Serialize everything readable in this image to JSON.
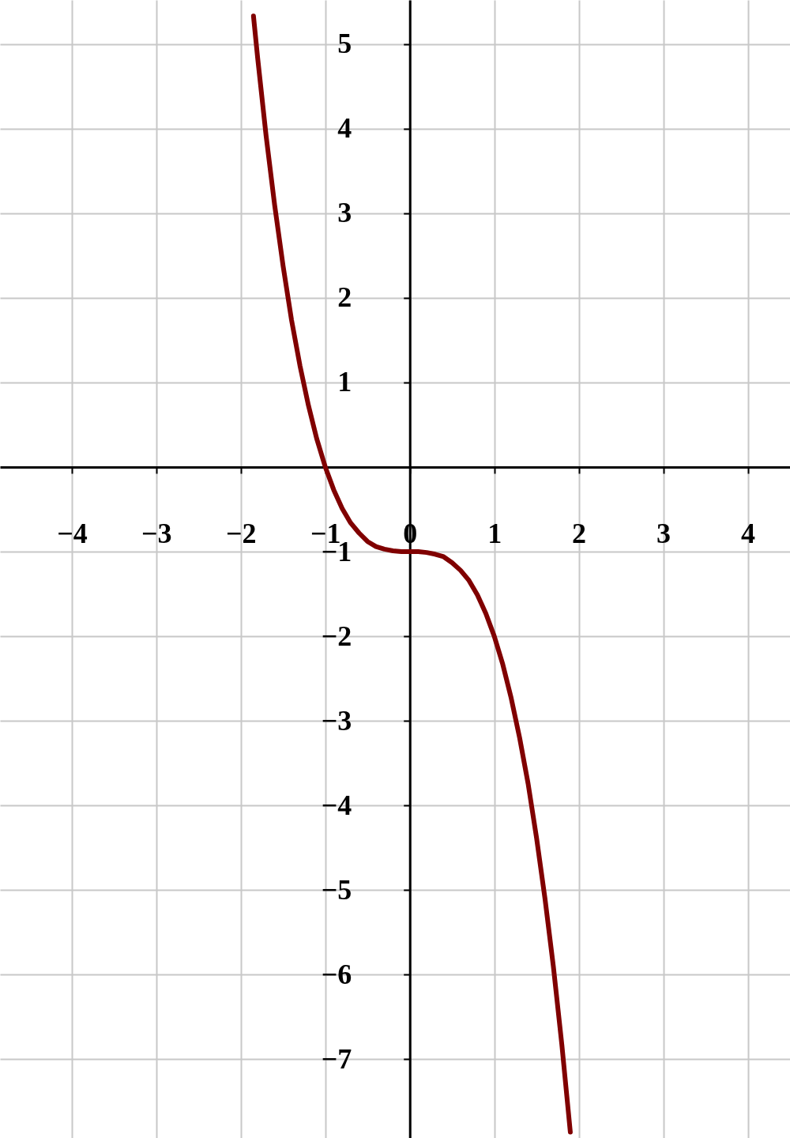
{
  "chart_data": {
    "type": "line",
    "x": [
      -1.85,
      -1.8,
      -1.7,
      -1.6,
      -1.5,
      -1.4,
      -1.3,
      -1.2,
      -1.1,
      -1.0,
      -0.9,
      -0.8,
      -0.7,
      -0.6,
      -0.5,
      -0.4,
      -0.3,
      -0.2,
      -0.1,
      0,
      0.1,
      0.2,
      0.3,
      0.4,
      0.5,
      0.6,
      0.7,
      0.8,
      0.9,
      1.0,
      1.1,
      1.2,
      1.3,
      1.4,
      1.5,
      1.6,
      1.7,
      1.8,
      1.9
    ],
    "series": [
      {
        "color": "#800000",
        "values": [
          5.33,
          4.83,
          3.91,
          3.1,
          2.38,
          1.74,
          1.2,
          0.73,
          0.33,
          0,
          -0.27,
          -0.49,
          -0.66,
          -0.78,
          -0.88,
          -0.94,
          -0.97,
          -0.99,
          -1.0,
          -1,
          -1.0,
          -1.01,
          -1.03,
          -1.06,
          -1.13,
          -1.22,
          -1.34,
          -1.51,
          -1.73,
          -2,
          -2.33,
          -2.73,
          -3.2,
          -3.74,
          -4.38,
          -5.1,
          -5.91,
          -6.83,
          -7.86
        ]
      }
    ],
    "xlim": [
      -4.85,
      4.5
    ],
    "ylim": [
      -7.93,
      5.52
    ],
    "xticks": [
      -4,
      -3,
      -2,
      -1,
      0,
      1,
      2,
      3,
      4
    ],
    "yticks": [
      -7,
      -6,
      -5,
      -4,
      -3,
      -2,
      -1,
      1,
      2,
      3,
      4,
      5
    ],
    "grid": true,
    "marker": "none",
    "line_style": "solid"
  }
}
